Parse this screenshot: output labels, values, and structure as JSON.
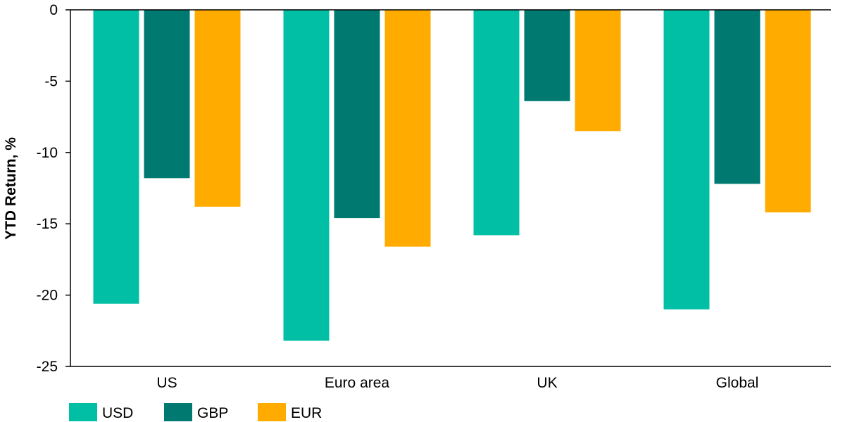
{
  "chart_data": {
    "type": "bar",
    "title": "",
    "xlabel": "",
    "ylabel": "YTD Return, %",
    "categories": [
      "US",
      "Euro area",
      "UK",
      "Global"
    ],
    "series": [
      {
        "name": "USD",
        "color": "#00bfa5",
        "values": [
          -20.6,
          -23.2,
          -15.8,
          -21.0
        ]
      },
      {
        "name": "GBP",
        "color": "#007a70",
        "values": [
          -11.8,
          -14.6,
          -6.4,
          -12.2
        ]
      },
      {
        "name": "EUR",
        "color": "#ffab00",
        "values": [
          -13.8,
          -16.6,
          -8.5,
          -14.2
        ]
      }
    ],
    "ylim": [
      -25,
      0
    ],
    "yticks": [
      0,
      -5,
      -10,
      -15,
      -20,
      -25
    ],
    "grid": false,
    "legend": "bottom-left"
  }
}
